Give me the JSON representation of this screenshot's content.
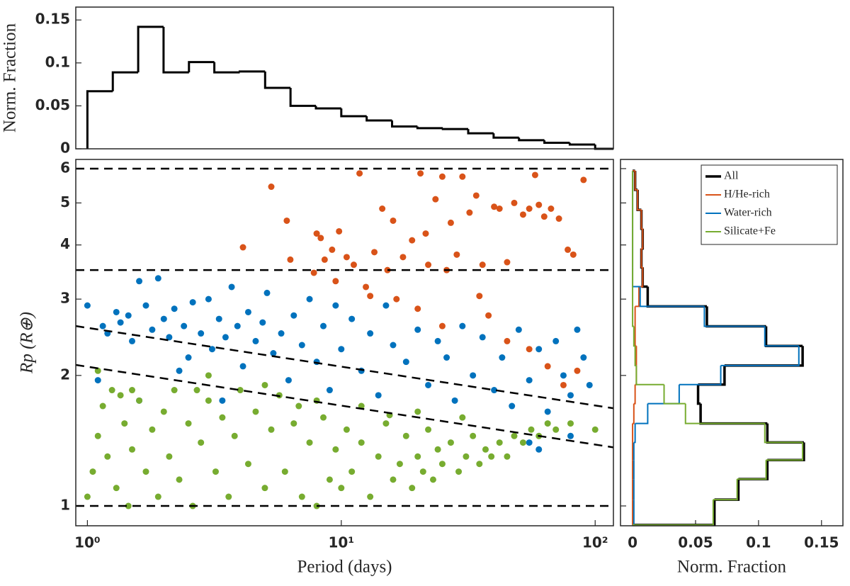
{
  "chart_data": [
    {
      "type": "histogram",
      "orientation": "vertical",
      "ylabel": "Norm. Fraction",
      "xlog": true,
      "xlim": [
        0.9,
        118
      ],
      "ylim": [
        0,
        0.165
      ],
      "yticks": [
        0,
        0.05,
        0.1,
        0.15
      ],
      "color": "#000000",
      "bins": [
        1,
        1.259,
        1.585,
        1.995,
        2.512,
        3.162,
        3.981,
        5.012,
        6.31,
        7.943,
        10,
        12.59,
        15.85,
        19.95,
        25.12,
        31.62,
        39.81,
        50.12,
        63.1,
        79.43,
        100
      ],
      "values": [
        0.067,
        0.089,
        0.142,
        0.089,
        0.101,
        0.089,
        0.09,
        0.071,
        0.05,
        0.047,
        0.038,
        0.033,
        0.026,
        0.024,
        0.023,
        0.018,
        0.013,
        0.01,
        0.007,
        0.005
      ]
    },
    {
      "type": "scatter",
      "xlabel": "Period (days)",
      "ylabel": "Rp (R⊕)",
      "xlog": true,
      "ylog": true,
      "xlim": [
        0.9,
        118
      ],
      "ylim": [
        0.9,
        6.3
      ],
      "xticks": [
        {
          "value": 1,
          "label": "10⁰"
        },
        {
          "value": 10,
          "label": "10¹"
        },
        {
          "value": 100,
          "label": "10²"
        }
      ],
      "yticks": [
        1,
        2,
        3,
        4,
        5,
        6
      ],
      "lines": [
        {
          "x": [
            0.9,
            118
          ],
          "y": [
            1,
            1
          ]
        },
        {
          "x": [
            0.9,
            118
          ],
          "y": [
            3.5,
            3.5
          ]
        },
        {
          "x": [
            0.9,
            118
          ],
          "y": [
            6,
            6
          ]
        },
        {
          "x": [
            0.9,
            118
          ],
          "y": [
            2.6,
            1.68
          ]
        },
        {
          "x": [
            0.9,
            118
          ],
          "y": [
            2.115,
            1.365
          ]
        }
      ],
      "series": [
        {
          "color": "#d95319",
          "x": [
            4.1,
            5.3,
            6.1,
            6.3,
            7.8,
            8.0,
            8.3,
            8.6,
            9.2,
            9.5,
            9.8,
            10.5,
            11.2,
            11.8,
            12.5,
            13.0,
            13.5,
            14.5,
            15.2,
            16.0,
            17.5,
            19.0,
            20.5,
            21.5,
            22.0,
            23.5,
            25.0,
            26.0,
            27.0,
            28.5,
            30.0,
            32.0,
            34.0,
            36.0,
            40.0,
            42.0,
            45.0,
            48.0,
            52.0,
            55.0,
            58.0,
            60.0,
            63.0,
            67.0,
            72.0,
            78.0,
            82.0,
            90.0,
            20.0,
            25.0,
            35.0,
            45.0,
            55.0,
            65.0,
            75.0,
            85.0,
            38.0,
            16.5
          ],
          "y": [
            3.95,
            5.45,
            4.55,
            3.7,
            3.45,
            4.25,
            4.15,
            3.7,
            3.9,
            3.3,
            4.3,
            3.75,
            3.6,
            5.85,
            3.2,
            3.05,
            3.85,
            4.85,
            3.5,
            4.55,
            3.75,
            4.1,
            5.85,
            4.25,
            3.6,
            5.1,
            5.75,
            3.5,
            4.5,
            3.8,
            5.75,
            4.75,
            5.2,
            3.6,
            4.9,
            4.85,
            3.65,
            5.0,
            4.7,
            4.85,
            5.8,
            4.95,
            4.65,
            4.85,
            4.6,
            3.9,
            3.8,
            5.65,
            2.85,
            2.6,
            3.05,
            2.4,
            2.3,
            2.1,
            1.9,
            2.05,
            2.75,
            3.0
          ]
        },
        {
          "color": "#0072bd",
          "x": [
            1.0,
            1.1,
            1.15,
            1.2,
            1.3,
            1.35,
            1.45,
            1.5,
            1.6,
            1.7,
            1.8,
            1.9,
            2.0,
            2.1,
            2.2,
            2.4,
            2.5,
            2.6,
            2.8,
            3.0,
            3.1,
            3.3,
            3.5,
            3.7,
            3.9,
            4.1,
            4.3,
            4.6,
            4.9,
            5.1,
            5.4,
            5.8,
            6.2,
            6.5,
            7.0,
            7.5,
            8.0,
            8.5,
            9.0,
            9.5,
            10.0,
            11.0,
            12.0,
            13.0,
            14.0,
            15.0,
            16.0,
            18.0,
            20.0,
            22.0,
            24.0,
            26.0,
            28.0,
            30.0,
            33.0,
            36.0,
            40.0,
            43.0,
            47.0,
            50.0,
            55.0,
            60.0,
            65.0,
            70.0,
            75.0,
            80.0,
            85.0,
            90.0,
            95.0,
            1.6,
            2.3,
            3.4,
            60.0,
            55.0,
            80.0
          ],
          "y": [
            2.9,
            1.95,
            2.6,
            2.5,
            2.8,
            2.65,
            2.75,
            2.4,
            3.3,
            2.9,
            2.55,
            3.35,
            2.7,
            2.45,
            2.85,
            2.6,
            2.2,
            2.95,
            2.5,
            3.0,
            2.3,
            2.7,
            2.45,
            3.2,
            2.6,
            2.1,
            2.8,
            2.4,
            2.65,
            3.1,
            2.25,
            2.5,
            1.95,
            2.75,
            2.35,
            3.0,
            2.15,
            2.6,
            1.85,
            2.9,
            2.3,
            2.7,
            2.05,
            2.5,
            1.8,
            2.9,
            2.35,
            2.15,
            2.55,
            1.9,
            2.4,
            2.2,
            1.75,
            2.6,
            2.0,
            2.45,
            1.85,
            2.2,
            1.7,
            2.55,
            1.95,
            2.3,
            1.65,
            2.4,
            2.0,
            1.8,
            2.55,
            2.2,
            1.9,
            1.75,
            2.05,
            1.75,
            1.35,
            1.4,
            1.45
          ]
        },
        {
          "color": "#77ac30",
          "x": [
            1.0,
            1.05,
            1.1,
            1.15,
            1.2,
            1.25,
            1.3,
            1.4,
            1.45,
            1.5,
            1.6,
            1.7,
            1.8,
            1.9,
            2.0,
            2.1,
            2.2,
            2.3,
            2.5,
            2.6,
            2.8,
            3.0,
            3.2,
            3.4,
            3.6,
            3.8,
            4.0,
            4.3,
            4.6,
            5.0,
            5.3,
            5.7,
            6.0,
            6.5,
            7.0,
            7.5,
            8.0,
            8.5,
            9.0,
            9.5,
            10.0,
            10.5,
            11.0,
            12.0,
            13.0,
            14.0,
            15.0,
            16.0,
            17.0,
            18.0,
            19.0,
            20.0,
            21.0,
            22.0,
            23.0,
            24.0,
            25.0,
            27.0,
            29.0,
            31.0,
            33.0,
            35.0,
            37.0,
            39.0,
            42.0,
            45.0,
            48.0,
            52.0,
            56.0,
            60.0,
            65.0,
            70.0,
            80.0,
            100.0,
            1.1,
            1.5,
            3.0,
            5.0,
            8.0,
            12.0,
            20.0,
            30.0,
            1.35,
            2.7,
            6.8,
            15.5
          ],
          "y": [
            1.05,
            1.2,
            1.45,
            1.7,
            1.3,
            1.85,
            1.1,
            1.55,
            1.0,
            1.35,
            1.75,
            1.2,
            1.5,
            1.05,
            1.65,
            1.3,
            1.85,
            1.15,
            1.55,
            1.0,
            1.4,
            1.75,
            1.2,
            1.6,
            1.05,
            1.45,
            1.85,
            1.25,
            1.65,
            1.1,
            1.5,
            1.8,
            1.2,
            1.55,
            1.05,
            1.4,
            1.0,
            1.6,
            1.15,
            1.35,
            1.1,
            1.5,
            1.2,
            1.4,
            1.05,
            1.3,
            1.55,
            1.15,
            1.25,
            1.45,
            1.1,
            1.3,
            1.2,
            1.5,
            1.15,
            1.35,
            1.25,
            1.4,
            1.2,
            1.3,
            1.45,
            1.25,
            1.35,
            1.3,
            1.4,
            1.3,
            1.45,
            1.4,
            1.5,
            1.45,
            1.55,
            1.5,
            1.55,
            1.5,
            2.05,
            1.85,
            2.0,
            1.9,
            1.75,
            1.7,
            1.65,
            1.6,
            1.8,
            1.85,
            1.7,
            1.62
          ]
        }
      ]
    },
    {
      "type": "histogram",
      "orientation": "horizontal",
      "xlabel": "Norm. Fraction",
      "ylog": true,
      "xlim": [
        -0.0096,
        0.167
      ],
      "xticks": [
        0,
        0.05,
        0.1,
        0.15
      ],
      "ylim": [
        0.9,
        6.3
      ],
      "legend": "upper right",
      "bins": [
        0.904,
        1.034,
        1.153,
        1.276,
        1.401,
        1.55,
        1.722,
        1.905,
        2.108,
        2.339,
        2.597,
        2.886,
        3.206,
        3.552,
        3.926,
        4.36,
        4.82,
        5.36,
        5.93
      ],
      "series": [
        {
          "name": "All",
          "color": "#000000",
          "values": [
            0.065,
            0.084,
            0.107,
            0.136,
            0.107,
            0.054,
            0.052,
            0.073,
            0.135,
            0.106,
            0.059,
            0.012,
            0.008,
            0.007,
            0.008,
            0.007,
            0.004,
            0.002
          ]
        },
        {
          "name": "H/He-rich",
          "color": "#d95319",
          "values": [
            0,
            0,
            0,
            0,
            0,
            0.001,
            0.002,
            0.003,
            0.003,
            0.002,
            0.002,
            0.005,
            0.008,
            0.007,
            0.008,
            0.007,
            0.004,
            0.002
          ]
        },
        {
          "name": "Water-rich",
          "color": "#0072bd",
          "values": [
            0.001,
            0.001,
            0.001,
            0.001,
            0.002,
            0.012,
            0.037,
            0.07,
            0.132,
            0.105,
            0.057,
            0.006,
            0,
            0,
            0,
            0,
            0,
            0
          ]
        },
        {
          "name": "Silicate+Fe",
          "color": "#77ac30",
          "values": [
            0.064,
            0.083,
            0.106,
            0.135,
            0.105,
            0.042,
            0.025,
            0.003,
            0.002,
            0.001,
            0,
            0,
            0,
            0,
            0,
            0,
            0,
            0
          ]
        }
      ]
    }
  ]
}
